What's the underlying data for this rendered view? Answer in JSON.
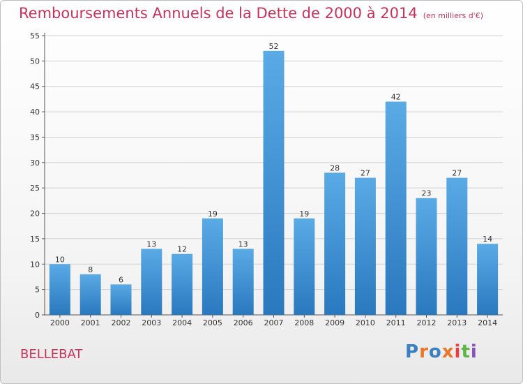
{
  "header": {
    "title": "Remboursements Annuels de la Dette de 2000 à 2014",
    "subtitle": "(en milliers d'€)"
  },
  "footer": {
    "commune": "BELLEBAT",
    "logo_text": "Proxiti",
    "logo_colors": [
      "#3a7fc1",
      "#e8762b",
      "#3a7fc1",
      "#e8762b",
      "#e84040",
      "#5fb547",
      "#8a4fbf"
    ]
  },
  "colors": {
    "title": "#c8325a",
    "bar_top": "#5aaae6",
    "bar_bottom": "#2a78be",
    "axis": "#555555",
    "grid": "#d0d0d0"
  },
  "chart_data": {
    "type": "bar",
    "categories": [
      "2000",
      "2001",
      "2002",
      "2003",
      "2004",
      "2005",
      "2006",
      "2007",
      "2008",
      "2009",
      "2010",
      "2011",
      "2012",
      "2013",
      "2014"
    ],
    "values": [
      10,
      8,
      6,
      13,
      12,
      19,
      13,
      52,
      19,
      28,
      27,
      42,
      23,
      27,
      14
    ],
    "ylim": [
      0,
      55
    ],
    "yticks": [
      0,
      5,
      10,
      15,
      20,
      25,
      30,
      35,
      40,
      45,
      50,
      55
    ],
    "grid": true,
    "data_labels": true
  }
}
